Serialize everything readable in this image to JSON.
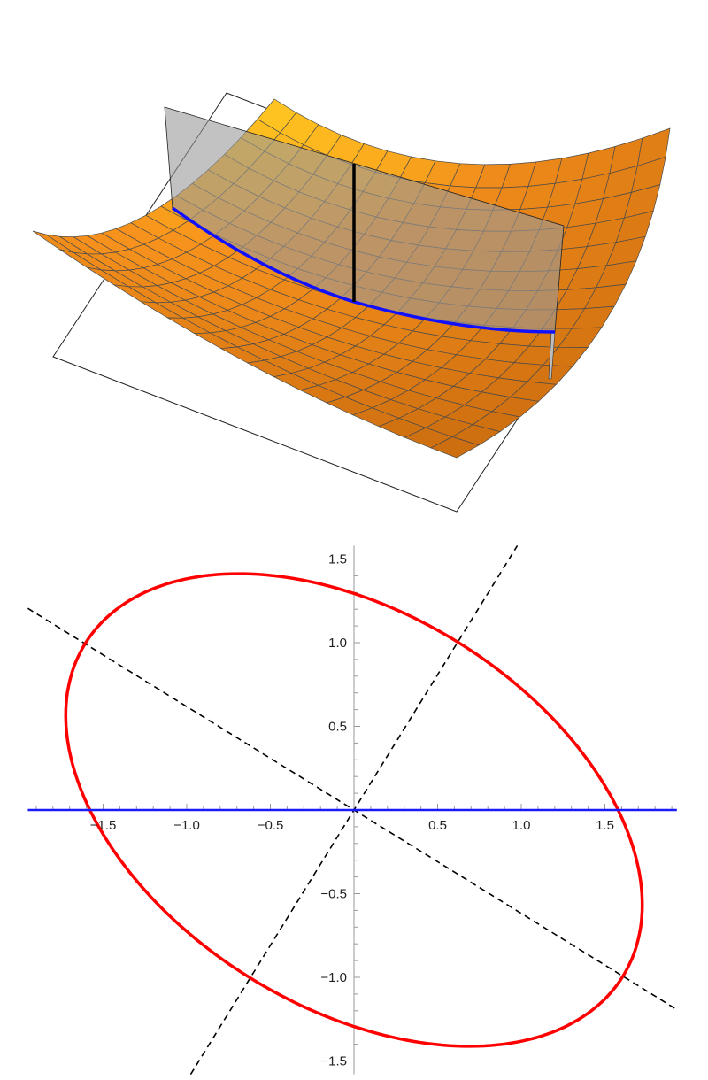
{
  "chart_data": [
    {
      "type": "surface",
      "surface_color": "#f7921c",
      "mesh_lines": 16,
      "cutting_plane_color": "#9a9a9a",
      "intersection_curve_color": "#1010ff",
      "vertical_segment_color": "#000000",
      "floor": "box outline"
    },
    {
      "type": "line",
      "xlim": [
        -1.95,
        1.93
      ],
      "ylim": [
        -1.58,
        1.58
      ],
      "x_ticks": [
        "-1.5",
        "-1.0",
        "-0.5",
        "0.5",
        "1.0",
        "1.5"
      ],
      "x_tick_values": [
        -1.5,
        -1.0,
        -0.5,
        0.5,
        1.0,
        1.5
      ],
      "y_ticks": [
        "1.5",
        "1.0",
        "0.5",
        "-0.5",
        "-1.0",
        "-1.5"
      ],
      "y_tick_values": [
        1.5,
        1.0,
        0.5,
        -0.5,
        -1.0,
        -1.5
      ],
      "ellipse": {
        "center": [
          0,
          0
        ],
        "semi_major": 1.89,
        "semi_minor": 1.18,
        "major_axis_slope": -0.618,
        "color": "#ff0000"
      },
      "dashed_lines": [
        {
          "slope": -0.618,
          "color": "#000000"
        },
        {
          "slope": 1.618,
          "color": "#000000"
        }
      ],
      "horizontal_line": {
        "y": 0,
        "color": "#1a1aff"
      },
      "grid": false
    }
  ]
}
